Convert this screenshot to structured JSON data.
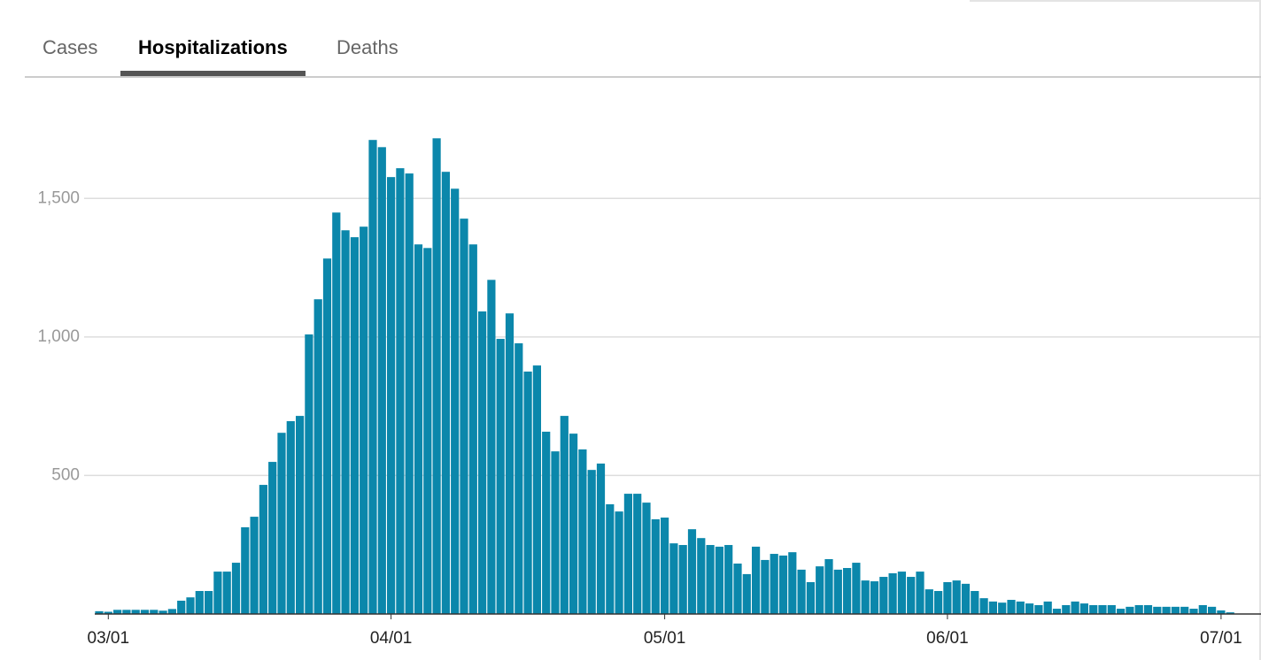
{
  "tabs": [
    "Cases",
    "Hospitalizations",
    "Deaths"
  ],
  "active_tab": 1,
  "chart_data": {
    "type": "bar",
    "color": "#0b87ab",
    "grid": true,
    "ylim": [
      0,
      1900
    ],
    "yticks": [
      500,
      {
        "value": 1000,
        "label": "1,000"
      },
      {
        "value": 1500,
        "label": "1,500"
      }
    ],
    "categories": [
      null,
      "03/01",
      null,
      null,
      null,
      null,
      null,
      null,
      null,
      null,
      null,
      null,
      null,
      null,
      null,
      null,
      null,
      null,
      null,
      null,
      null,
      null,
      null,
      null,
      null,
      null,
      null,
      null,
      null,
      null,
      null,
      null,
      "04/01",
      null,
      null,
      null,
      null,
      null,
      null,
      null,
      null,
      null,
      null,
      null,
      null,
      null,
      null,
      null,
      null,
      null,
      null,
      null,
      null,
      null,
      null,
      null,
      null,
      null,
      null,
      null,
      null,
      null,
      "05/01",
      null,
      null,
      null,
      null,
      null,
      null,
      null,
      null,
      null,
      null,
      null,
      null,
      null,
      null,
      null,
      null,
      null,
      null,
      null,
      null,
      null,
      null,
      null,
      null,
      null,
      null,
      null,
      null,
      null,
      null,
      "06/01",
      null,
      null,
      null,
      null,
      null,
      null,
      null,
      null,
      null,
      null,
      null,
      null,
      null,
      null,
      null,
      null,
      null,
      null,
      null,
      null,
      null,
      null,
      null,
      null,
      null,
      null,
      null,
      null,
      null,
      "07/01",
      null
    ],
    "values": [
      10,
      8,
      15,
      15,
      15,
      15,
      15,
      12,
      18,
      48,
      60,
      83,
      83,
      153,
      153,
      185,
      313,
      351,
      466,
      549,
      654,
      696,
      715,
      1009,
      1136,
      1283,
      1449,
      1385,
      1360,
      1398,
      1711,
      1685,
      1577,
      1609,
      1590,
      1334,
      1321,
      1717,
      1596,
      1535,
      1427,
      1334,
      1092,
      1206,
      993,
      1085,
      977,
      875,
      897,
      658,
      587,
      715,
      651,
      594,
      520,
      543,
      396,
      370,
      434,
      434,
      402,
      342,
      348,
      255,
      249,
      306,
      274,
      249,
      243,
      249,
      182,
      144,
      243,
      195,
      217,
      211,
      223,
      160,
      115,
      172,
      198,
      160,
      166,
      185,
      121,
      118,
      134,
      147,
      153,
      134,
      153,
      89,
      83,
      115,
      121,
      109,
      83,
      57,
      45,
      41,
      51,
      45,
      38,
      32,
      45,
      19,
      32,
      45,
      38,
      32,
      32,
      32,
      19,
      26,
      32,
      32,
      26,
      26,
      26,
      26,
      19,
      32,
      26,
      13,
      6
    ]
  }
}
